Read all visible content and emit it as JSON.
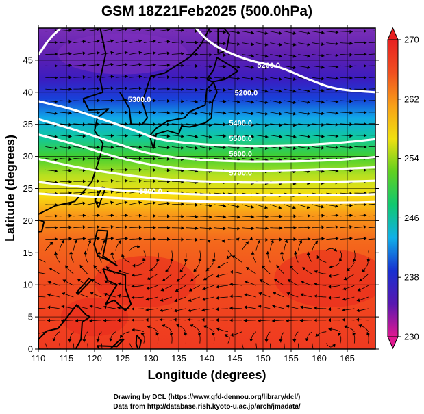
{
  "title": "GSM 18Z21Feb2025 (500.0hPa)",
  "xlabel": "Longitude (degrees)",
  "ylabel": "Latitude  (degrees)",
  "credits": [
    "Drawing by DCL (https://www.gfd-dennou.org/library/dcl/)",
    "Data from http://database.rish.kyoto-u.ac.jp/arch/jmadata/"
  ],
  "map": {
    "lon_range": [
      110,
      170
    ],
    "lat_range": [
      0,
      50
    ],
    "lon_ticks": [
      "110",
      "115",
      "120",
      "125",
      "130",
      "135",
      "140",
      "145",
      "150",
      "155",
      "160",
      "165"
    ],
    "lat_ticks": [
      "0",
      "5",
      "10",
      "15",
      "20",
      "25",
      "30",
      "35",
      "40",
      "45"
    ],
    "temperature_band_colors": [
      {
        "lat": 0,
        "color": "#ef3a20"
      },
      {
        "lat": 10,
        "color": "#f14a1e"
      },
      {
        "lat": 17,
        "color": "#f46a1c"
      },
      {
        "lat": 21,
        "color": "#f99a18"
      },
      {
        "lat": 24,
        "color": "#f8e010"
      },
      {
        "lat": 27,
        "color": "#b8e020"
      },
      {
        "lat": 30,
        "color": "#40d030"
      },
      {
        "lat": 33,
        "color": "#10c8a0"
      },
      {
        "lat": 36,
        "color": "#10a8e8"
      },
      {
        "lat": 39,
        "color": "#1840d8"
      },
      {
        "lat": 42,
        "color": "#3a1cc0"
      },
      {
        "lat": 46,
        "color": "#6020b0"
      },
      {
        "lat": 50,
        "color": "#7a30b8"
      }
    ]
  },
  "contours": [
    {
      "label": "5200.0",
      "points": [
        [
          110,
          45.8
        ],
        [
          112,
          48.4
        ],
        [
          114,
          50
        ]
      ],
      "label_at": [
        147,
        39.5
      ]
    },
    {
      "label": "5200.0",
      "points": [
        [
          138,
          50
        ],
        [
          141,
          47.3
        ],
        [
          147,
          45
        ],
        [
          153,
          44
        ],
        [
          158,
          42
        ],
        [
          163,
          40.4
        ],
        [
          170,
          40
        ]
      ],
      "label_at": [
        151,
        43.8
      ]
    },
    {
      "label": "5300.0",
      "points": [
        [
          110,
          38.6
        ],
        [
          116,
          37.4
        ],
        [
          122,
          35.6
        ],
        [
          128,
          33.8
        ],
        [
          131,
          32.7
        ],
        [
          137,
          32
        ],
        [
          145,
          31.6
        ],
        [
          152,
          31.6
        ],
        [
          159,
          31.8
        ],
        [
          166,
          32.3
        ],
        [
          170,
          32.7
        ]
      ],
      "label_at": [
        128,
        38.5
      ]
    },
    {
      "label": "5400.0",
      "points": [
        [
          110,
          35.8
        ],
        [
          116,
          34.3
        ],
        [
          123,
          32.3
        ],
        [
          129,
          30.5
        ],
        [
          136,
          29.6
        ],
        [
          145,
          29.2
        ],
        [
          152,
          29.2
        ],
        [
          160,
          29.3
        ],
        [
          166,
          29.6
        ],
        [
          170,
          29.9
        ]
      ],
      "label_at": [
        146,
        34.8
      ]
    },
    {
      "label": "5500.0",
      "points": [
        [
          110,
          33.4
        ],
        [
          117,
          31.8
        ],
        [
          124,
          29.8
        ],
        [
          131,
          28.5
        ],
        [
          138,
          27.9
        ],
        [
          146,
          27.7
        ],
        [
          154,
          27.8
        ],
        [
          162,
          28.0
        ],
        [
          170,
          28.3
        ]
      ],
      "label_at": [
        146,
        32.4
      ]
    },
    {
      "label": "5600.0",
      "points": [
        [
          110,
          29.6
        ],
        [
          118,
          28.1
        ],
        [
          126,
          27.0
        ],
        [
          134,
          26.3
        ],
        [
          142,
          26.0
        ],
        [
          150,
          25.9
        ],
        [
          158,
          26.0
        ],
        [
          166,
          26.1
        ],
        [
          170,
          26.2
        ]
      ],
      "label_at": [
        146,
        30.0
      ]
    },
    {
      "label": "5700.0",
      "points": [
        [
          110,
          26.0
        ],
        [
          118,
          25.2
        ],
        [
          126,
          24.6
        ],
        [
          134,
          24.2
        ],
        [
          142,
          24.0
        ],
        [
          150,
          23.9
        ],
        [
          158,
          24.0
        ],
        [
          166,
          24.0
        ],
        [
          170,
          24.1
        ]
      ],
      "label_at": [
        146,
        27.0
      ]
    },
    {
      "label": "5800.0",
      "points": [
        [
          110,
          24.2
        ],
        [
          118,
          23.8
        ],
        [
          126,
          23.4
        ],
        [
          134,
          23.1
        ],
        [
          142,
          22.9
        ],
        [
          150,
          22.8
        ],
        [
          158,
          22.8
        ],
        [
          166,
          22.8
        ],
        [
          170,
          22.9
        ]
      ],
      "label_at": [
        130,
        24.2
      ]
    }
  ],
  "colorbar": {
    "ticks": [
      "230",
      "238",
      "246",
      "254",
      "262",
      "270"
    ],
    "colors": [
      "#e01890",
      "#5818b0",
      "#1830d0",
      "#10b0e8",
      "#10c870",
      "#60d020",
      "#f0e010",
      "#f8a018",
      "#f05020",
      "#e82020"
    ]
  }
}
